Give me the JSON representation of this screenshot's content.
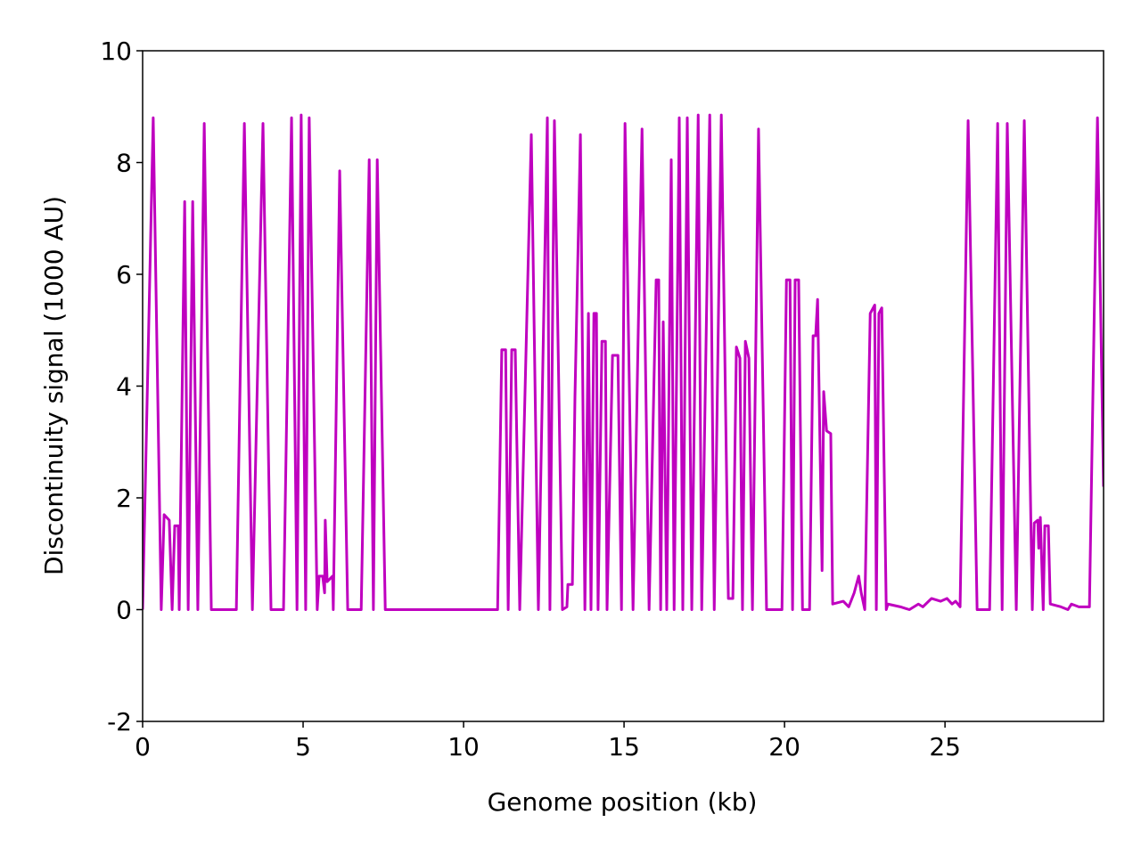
{
  "chart_data": {
    "type": "line",
    "xlabel": "Genome position (kb)",
    "ylabel": "Discontinuity signal (1000 AU)",
    "xlim": [
      0,
      29.94
    ],
    "ylim": [
      -2,
      10
    ],
    "xticks": [
      0,
      5,
      10,
      15,
      20,
      25
    ],
    "yticks": [
      -2,
      0,
      2,
      4,
      6,
      8,
      10
    ],
    "grid": false,
    "series": [
      {
        "name": "signal",
        "color": "#bf00bf",
        "x": [
          0,
          0.33,
          0.58,
          0.67,
          0.83,
          0.92,
          1.0,
          1.11,
          1.14,
          1.31,
          1.42,
          1.56,
          1.72,
          1.92,
          2.14,
          2.92,
          3.17,
          3.42,
          3.75,
          4.0,
          4.39,
          4.64,
          4.81,
          4.94,
          5.08,
          5.19,
          5.44,
          5.5,
          5.61,
          5.67,
          5.69,
          5.75,
          5.92,
          5.94,
          6.14,
          6.39,
          6.81,
          7.06,
          7.19,
          7.31,
          7.56,
          11.06,
          11.19,
          11.31,
          11.39,
          11.5,
          11.61,
          11.75,
          12.11,
          12.33,
          12.61,
          12.69,
          12.83,
          13.08,
          13.22,
          13.25,
          13.39,
          13.47,
          13.64,
          13.78,
          13.89,
          13.97,
          14.06,
          14.14,
          14.19,
          14.31,
          14.42,
          14.47,
          14.64,
          14.81,
          14.92,
          15.03,
          15.28,
          15.56,
          15.78,
          16.0,
          16.08,
          16.14,
          16.22,
          16.33,
          16.47,
          16.56,
          16.72,
          16.83,
          16.97,
          17.11,
          17.31,
          17.42,
          17.67,
          17.81,
          18.03,
          18.25,
          18.39,
          18.5,
          18.61,
          18.69,
          18.78,
          18.89,
          19.0,
          19.19,
          19.44,
          19.92,
          20.06,
          20.17,
          20.25,
          20.33,
          20.44,
          20.56,
          20.78,
          20.89,
          20.97,
          21.03,
          21.17,
          21.22,
          21.31,
          21.44,
          21.5,
          21.83,
          22.0,
          22.17,
          22.31,
          22.39,
          22.5,
          22.67,
          22.81,
          22.86,
          22.94,
          23.03,
          23.17,
          23.22,
          23.61,
          23.89,
          24.17,
          24.31,
          24.58,
          24.86,
          25.06,
          25.22,
          25.33,
          25.47,
          25.72,
          26.0,
          26.39,
          26.64,
          26.78,
          26.94,
          27.22,
          27.47,
          27.72,
          27.78,
          27.89,
          27.92,
          27.97,
          28.06,
          28.11,
          28.22,
          28.28,
          28.61,
          28.83,
          28.94,
          29.17,
          29.5,
          29.75,
          29.94
        ],
        "values": [
          0,
          8.8,
          0,
          1.7,
          1.6,
          0,
          1.5,
          1.5,
          0,
          7.3,
          0,
          7.3,
          0,
          8.7,
          0,
          0,
          8.7,
          0,
          8.7,
          0,
          0,
          8.8,
          0,
          8.85,
          0,
          8.8,
          0,
          0.6,
          0.6,
          0.3,
          1.6,
          0.5,
          0.6,
          0,
          7.85,
          0,
          0,
          8.05,
          0,
          8.05,
          0,
          0,
          4.65,
          4.65,
          0,
          4.65,
          4.65,
          0,
          8.5,
          0,
          8.8,
          0,
          8.75,
          0,
          0.05,
          0.45,
          0.45,
          3.8,
          8.5,
          0,
          5.3,
          0,
          5.3,
          5.3,
          0,
          4.8,
          4.8,
          0,
          4.55,
          4.55,
          0,
          8.7,
          0,
          8.6,
          0,
          5.9,
          5.9,
          0,
          5.15,
          0,
          8.05,
          0,
          8.8,
          0,
          8.8,
          0,
          8.85,
          0,
          8.85,
          0,
          8.85,
          0.2,
          0.2,
          4.7,
          4.5,
          0,
          4.8,
          4.5,
          0,
          8.6,
          0,
          0,
          5.9,
          5.9,
          0,
          5.9,
          5.9,
          0,
          0,
          4.9,
          4.9,
          5.55,
          0.7,
          3.9,
          3.2,
          3.15,
          0.1,
          0.15,
          0.05,
          0.3,
          0.6,
          0.3,
          0,
          5.3,
          5.45,
          0,
          5.3,
          5.4,
          0,
          0.1,
          0.05,
          0,
          0.1,
          0.05,
          0.2,
          0.15,
          0.2,
          0.1,
          0.15,
          0.05,
          8.75,
          0,
          0,
          8.7,
          0,
          8.7,
          0,
          8.75,
          0,
          1.55,
          1.6,
          1.1,
          1.65,
          0,
          1.5,
          1.5,
          0.1,
          0.05,
          0,
          0.1,
          0.05,
          0.05,
          8.8,
          2.2
        ]
      }
    ]
  }
}
